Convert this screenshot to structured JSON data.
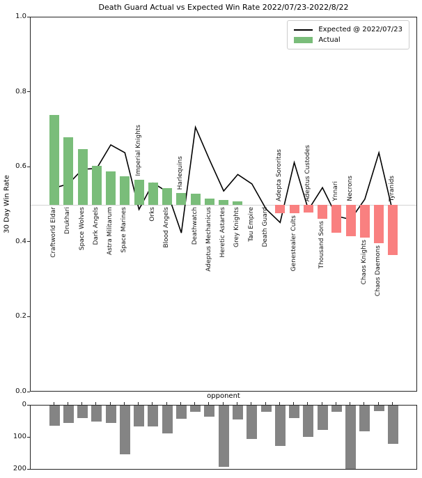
{
  "colors": {
    "actual_positive": "#7abd7a",
    "actual_negative": "#f98080",
    "expected_line": "#000000",
    "games_bar": "#848484",
    "baseline": "#d3d3d3"
  },
  "chart_data": {
    "type": "combo",
    "main": {
      "type": "bar+line",
      "title": "Death Guard Actual vs Expected Win Rate 2022/07/23-2022/8/22",
      "ylabel": "30 Day Win Rate",
      "ylim": [
        0.0,
        1.0
      ],
      "yticks": [
        1.0,
        0.8,
        0.6,
        0.4,
        0.2,
        0.0
      ],
      "baseline": 0.5,
      "bar_series": "Actual",
      "line_series": "Expected @ 2022/07/23",
      "legend_position": "upper right",
      "grid": false
    },
    "sub": {
      "type": "bar",
      "xlabel": "opponent",
      "yticks": [
        0,
        100,
        200
      ],
      "ylim": [
        0,
        202
      ],
      "inverted": true
    },
    "categories": [
      {
        "name": "Craftworld Eldar",
        "actual": 0.74,
        "expected": 0.545,
        "count": 62,
        "label_side": "below"
      },
      {
        "name": "Drukhari",
        "actual": 0.68,
        "expected": 0.556,
        "count": 54,
        "label_side": "below"
      },
      {
        "name": "Space Wolves",
        "actual": 0.649,
        "expected": 0.595,
        "count": 40,
        "label_side": "below"
      },
      {
        "name": "Dark Angels",
        "actual": 0.604,
        "expected": 0.597,
        "count": 49,
        "label_side": "below"
      },
      {
        "name": "Astra Militarum",
        "actual": 0.589,
        "expected": 0.66,
        "count": 54,
        "label_side": "below"
      },
      {
        "name": "Space Marines",
        "actual": 0.577,
        "expected": 0.639,
        "count": 152,
        "label_side": "below"
      },
      {
        "name": "Imperial Knights",
        "actual": 0.567,
        "expected": 0.488,
        "count": 65,
        "label_side": "above"
      },
      {
        "name": "Orks",
        "actual": 0.559,
        "expected": 0.558,
        "count": 65,
        "label_side": "below"
      },
      {
        "name": "Blood Angels",
        "actual": 0.544,
        "expected": 0.535,
        "count": 86,
        "label_side": "below"
      },
      {
        "name": "Harlequins",
        "actual": 0.531,
        "expected": 0.425,
        "count": 42,
        "label_side": "above"
      },
      {
        "name": "Deathwatch",
        "actual": 0.53,
        "expected": 0.707,
        "count": 20,
        "label_side": "below"
      },
      {
        "name": "Adeptus Mechanicus",
        "actual": 0.516,
        "expected": 0.62,
        "count": 34,
        "label_side": "below"
      },
      {
        "name": "Heretic Astartes",
        "actual": 0.513,
        "expected": 0.537,
        "count": 191,
        "label_side": "below"
      },
      {
        "name": "Grey Knights",
        "actual": 0.51,
        "expected": 0.581,
        "count": 44,
        "label_side": "below"
      },
      {
        "name": "Tau Empire",
        "actual": 0.5,
        "expected": 0.556,
        "count": 104,
        "label_side": "below"
      },
      {
        "name": "Death Guard",
        "actual": 0.5,
        "expected": 0.489,
        "count": 20,
        "label_side": "below"
      },
      {
        "name": "Adepta Sororitas",
        "actual": 0.478,
        "expected": 0.453,
        "count": 125,
        "label_side": "above"
      },
      {
        "name": "Genestealer Cults",
        "actual": 0.478,
        "expected": 0.613,
        "count": 40,
        "label_side": "below"
      },
      {
        "name": "Adeptus Custodes",
        "actual": 0.479,
        "expected": 0.487,
        "count": 98,
        "label_side": "above"
      },
      {
        "name": "Thousand Sons",
        "actual": 0.462,
        "expected": 0.546,
        "count": 76,
        "label_side": "below"
      },
      {
        "name": "Ynnari",
        "actual": 0.426,
        "expected": 0.47,
        "count": 19,
        "label_side": "above"
      },
      {
        "name": "Necrons",
        "actual": 0.417,
        "expected": 0.461,
        "count": 197,
        "label_side": "above"
      },
      {
        "name": "Chaos Knights",
        "actual": 0.412,
        "expected": 0.515,
        "count": 81,
        "label_side": "below"
      },
      {
        "name": "Chaos Daemons",
        "actual": 0.398,
        "expected": 0.639,
        "count": 17,
        "label_side": "below"
      },
      {
        "name": "Tyranids",
        "actual": 0.366,
        "expected": 0.478,
        "count": 120,
        "label_side": "above"
      }
    ]
  }
}
